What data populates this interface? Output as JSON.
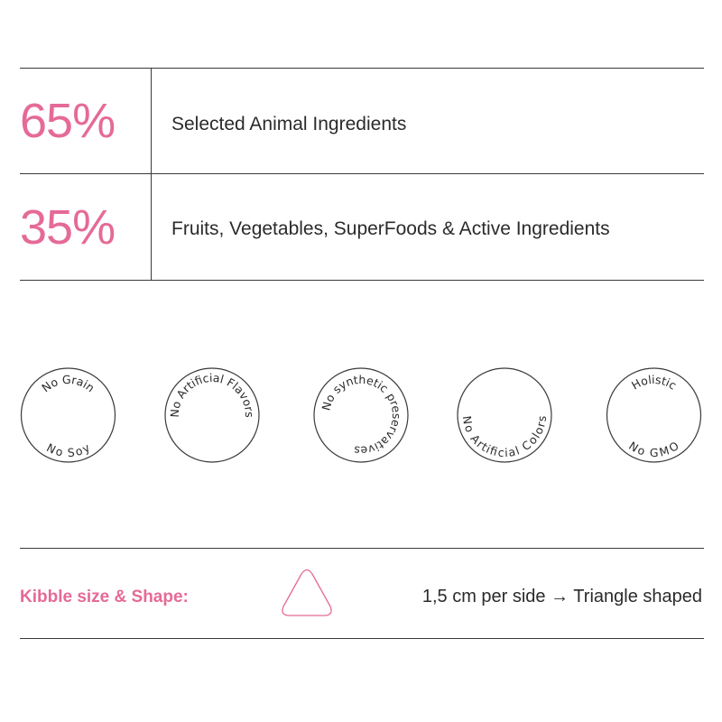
{
  "composition": [
    {
      "percent": "65%",
      "label": "Selected Animal Ingredients"
    },
    {
      "percent": "35%",
      "label": "Fruits, Vegetables, SuperFoods & Active Ingredients"
    }
  ],
  "badges": [
    {
      "top": "No Grain",
      "bottom": "No Soy"
    },
    {
      "top": "No Artificial Flavors",
      "bottom": ""
    },
    {
      "top": "No synthetic preservatives",
      "bottom": ""
    },
    {
      "top": "",
      "bottom": "No Artificial Colors"
    },
    {
      "top": "Holistic",
      "bottom": "No GMO"
    }
  ],
  "kibble": {
    "label": "Kibble size & Shape:",
    "shape_icon": "triangle-icon",
    "description": "1,5 cm per side → Triangle shaped"
  },
  "colors": {
    "accent": "#e56a97",
    "text": "#2b2b2b",
    "rule": "#3a3a3a"
  }
}
